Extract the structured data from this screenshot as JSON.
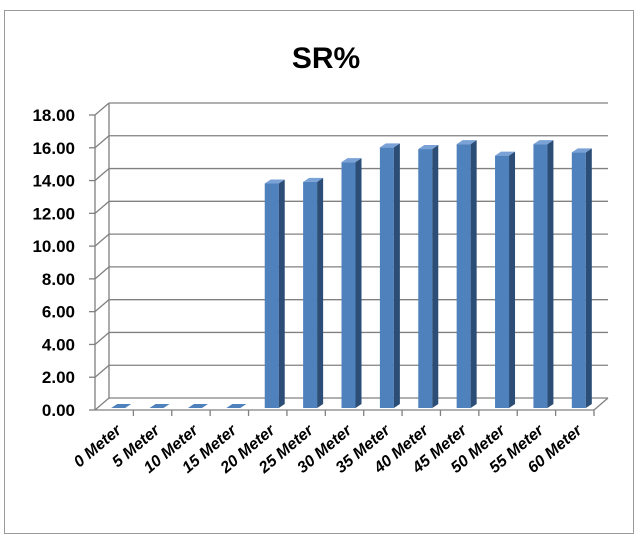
{
  "chart_data": {
    "type": "bar",
    "title": "SR%",
    "xlabel": "",
    "ylabel": "",
    "categories": [
      "0 Meter",
      "5 Meter",
      "10 Meter",
      "15 Meter",
      "20 Meter",
      "25 Meter",
      "30 Meter",
      "35 Meter",
      "40 Meter",
      "45 Meter",
      "50 Meter",
      "55 Meter",
      "60 Meter"
    ],
    "values": [
      0,
      0,
      0,
      0,
      13.7,
      13.8,
      15.0,
      15.9,
      15.8,
      16.1,
      15.4,
      16.1,
      15.6
    ],
    "ylim": [
      0,
      18
    ],
    "yticks": [
      "0.00",
      "2.00",
      "4.00",
      "6.00",
      "8.00",
      "10.00",
      "12.00",
      "14.00",
      "16.00",
      "18.00"
    ],
    "grid": true,
    "legend": "none",
    "colors": {
      "bar_front": "#4f81bd",
      "bar_side": "#2c4d75",
      "bar_top": "#7aa2d6",
      "grid": "#808080"
    }
  }
}
